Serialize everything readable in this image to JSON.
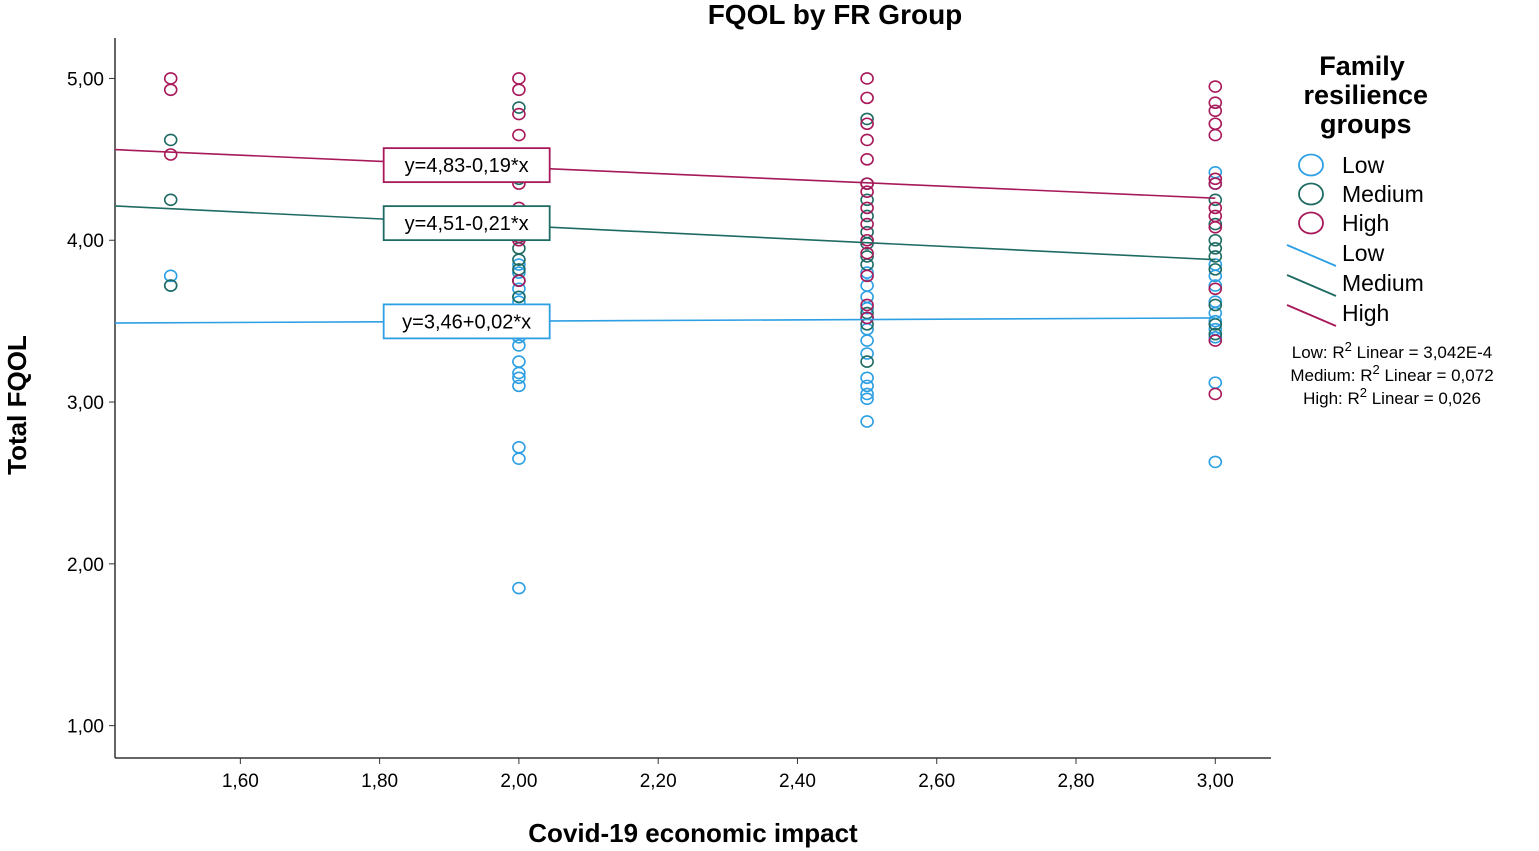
{
  "chart_data": {
    "type": "scatter",
    "title": "FQOL by FR Group",
    "xlabel": "Covid-19 economic impact",
    "ylabel": "Total FQOL",
    "xlim": [
      1.42,
      3.08
    ],
    "ylim": [
      0.8,
      5.25
    ],
    "x_ticks": [
      "1,60",
      "1,80",
      "2,00",
      "2,20",
      "2,40",
      "2,60",
      "2,80",
      "3,00"
    ],
    "y_ticks": [
      "1,00",
      "2,00",
      "3,00",
      "4,00",
      "5,00"
    ],
    "legend_title": "Family resilience groups",
    "legend": {
      "markers": [
        "Low",
        "Medium",
        "High"
      ],
      "lines": [
        "Low",
        "Medium",
        "High"
      ]
    },
    "r2_lines": [
      {
        "group": "Low: ",
        "text": " Linear = 3,042E-4"
      },
      {
        "group": "Medium: ",
        "text": " Linear = 0,072"
      },
      {
        "group": "High: ",
        "text": " Linear = 0,026"
      }
    ],
    "colors": {
      "Low": "#2d9fe3",
      "Medium": "#1f6b63",
      "High": "#a8195a"
    },
    "series": [
      {
        "name": "Low",
        "fit": {
          "intercept": 3.46,
          "slope": 0.02,
          "equation": "y=3,46+0,02*x",
          "r2": "3,042E-4"
        },
        "points": [
          [
            1.5,
            3.78
          ],
          [
            1.5,
            3.72
          ],
          [
            2.0,
            3.85
          ],
          [
            2.0,
            3.8
          ],
          [
            2.0,
            3.75
          ],
          [
            2.0,
            3.7
          ],
          [
            2.0,
            3.65
          ],
          [
            2.0,
            3.62
          ],
          [
            2.0,
            3.52
          ],
          [
            2.0,
            3.45
          ],
          [
            2.0,
            3.4
          ],
          [
            2.0,
            3.35
          ],
          [
            2.0,
            3.25
          ],
          [
            2.0,
            3.18
          ],
          [
            2.0,
            3.15
          ],
          [
            2.0,
            3.1
          ],
          [
            2.0,
            2.72
          ],
          [
            2.0,
            2.65
          ],
          [
            2.0,
            1.85
          ],
          [
            2.5,
            3.8
          ],
          [
            2.5,
            3.72
          ],
          [
            2.5,
            3.65
          ],
          [
            2.5,
            3.58
          ],
          [
            2.5,
            3.52
          ],
          [
            2.5,
            3.45
          ],
          [
            2.5,
            3.38
          ],
          [
            2.5,
            3.3
          ],
          [
            2.5,
            3.15
          ],
          [
            2.5,
            3.1
          ],
          [
            2.5,
            3.05
          ],
          [
            2.5,
            3.02
          ],
          [
            2.5,
            2.88
          ],
          [
            3.0,
            4.42
          ],
          [
            3.0,
            4.35
          ],
          [
            3.0,
            3.85
          ],
          [
            3.0,
            3.78
          ],
          [
            3.0,
            3.72
          ],
          [
            3.0,
            3.62
          ],
          [
            3.0,
            3.55
          ],
          [
            3.0,
            3.5
          ],
          [
            3.0,
            3.45
          ],
          [
            3.0,
            3.4
          ],
          [
            3.0,
            3.12
          ],
          [
            3.0,
            2.63
          ]
        ]
      },
      {
        "name": "Medium",
        "fit": {
          "intercept": 4.51,
          "slope": -0.21,
          "equation": "y=4,51-0,21*x",
          "r2": "0,072"
        },
        "points": [
          [
            1.5,
            4.62
          ],
          [
            1.5,
            4.25
          ],
          [
            1.5,
            3.72
          ],
          [
            2.0,
            4.82
          ],
          [
            2.0,
            4.38
          ],
          [
            2.0,
            4.1
          ],
          [
            2.0,
            4.02
          ],
          [
            2.0,
            3.95
          ],
          [
            2.0,
            3.88
          ],
          [
            2.0,
            3.82
          ],
          [
            2.0,
            3.75
          ],
          [
            2.0,
            3.65
          ],
          [
            2.5,
            4.75
          ],
          [
            2.5,
            4.35
          ],
          [
            2.5,
            4.25
          ],
          [
            2.5,
            4.15
          ],
          [
            2.5,
            4.05
          ],
          [
            2.5,
            3.98
          ],
          [
            2.5,
            3.9
          ],
          [
            2.5,
            3.85
          ],
          [
            2.5,
            3.55
          ],
          [
            2.5,
            3.48
          ],
          [
            2.5,
            3.25
          ],
          [
            3.0,
            4.25
          ],
          [
            3.0,
            4.1
          ],
          [
            3.0,
            4.0
          ],
          [
            3.0,
            3.95
          ],
          [
            3.0,
            3.9
          ],
          [
            3.0,
            3.82
          ],
          [
            3.0,
            3.6
          ],
          [
            3.0,
            3.48
          ],
          [
            3.0,
            3.42
          ]
        ]
      },
      {
        "name": "High",
        "fit": {
          "intercept": 4.83,
          "slope": -0.19,
          "equation": "y=4,83-0,19*x",
          "r2": "0,026"
        },
        "points": [
          [
            1.5,
            5.0
          ],
          [
            1.5,
            4.93
          ],
          [
            1.5,
            4.53
          ],
          [
            2.0,
            5.0
          ],
          [
            2.0,
            4.93
          ],
          [
            2.0,
            4.78
          ],
          [
            2.0,
            4.65
          ],
          [
            2.0,
            4.35
          ],
          [
            2.0,
            4.2
          ],
          [
            2.0,
            4.08
          ],
          [
            2.0,
            4.02
          ],
          [
            2.0,
            4.0
          ],
          [
            2.0,
            3.75
          ],
          [
            2.5,
            5.0
          ],
          [
            2.5,
            4.88
          ],
          [
            2.5,
            4.72
          ],
          [
            2.5,
            4.62
          ],
          [
            2.5,
            4.5
          ],
          [
            2.5,
            4.35
          ],
          [
            2.5,
            4.3
          ],
          [
            2.5,
            4.2
          ],
          [
            2.5,
            4.1
          ],
          [
            2.5,
            4.0
          ],
          [
            2.5,
            3.92
          ],
          [
            2.5,
            3.78
          ],
          [
            2.5,
            3.6
          ],
          [
            2.5,
            3.52
          ],
          [
            3.0,
            4.95
          ],
          [
            3.0,
            4.85
          ],
          [
            3.0,
            4.8
          ],
          [
            3.0,
            4.72
          ],
          [
            3.0,
            4.65
          ],
          [
            3.0,
            4.38
          ],
          [
            3.0,
            4.35
          ],
          [
            3.0,
            4.2
          ],
          [
            3.0,
            4.15
          ],
          [
            3.0,
            4.08
          ],
          [
            3.0,
            3.7
          ],
          [
            3.0,
            3.38
          ],
          [
            3.0,
            3.05
          ]
        ]
      }
    ]
  }
}
